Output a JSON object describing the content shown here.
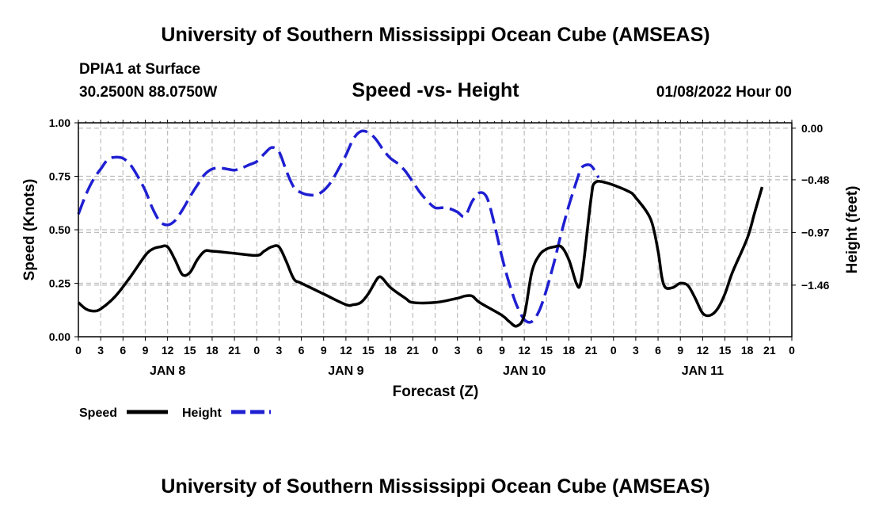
{
  "header": {
    "title": "University of Southern Mississippi Ocean Cube (AMSEAS)",
    "station": "DPIA1 at Surface",
    "coordinates": "30.2500N  88.0750W",
    "subtitle": "Speed -vs- Height",
    "datetime": "01/08/2022 Hour 00"
  },
  "footer": {
    "title": "University of Southern Mississippi Ocean Cube (AMSEAS)"
  },
  "chart_data": {
    "type": "line",
    "xlabel": "Forecast (Z)",
    "ylabel_left": "Speed (Knots)",
    "ylabel_right": "Height (feet)",
    "x_range_hours": [
      0,
      96
    ],
    "ylim_left": [
      0,
      1
    ],
    "ylim_right": [
      -1.94,
      0.05
    ],
    "left_ticks": [
      "0.00",
      "0.25",
      "0.50",
      "0.75",
      "1.00"
    ],
    "left_tick_values": [
      0,
      0.25,
      0.5,
      0.75,
      1.0
    ],
    "right_ticks": [
      "0.00",
      "−0.48",
      "−0.97",
      "−1.46"
    ],
    "right_tick_values": [
      0.0,
      -0.48,
      -0.97,
      -1.46
    ],
    "x_tick_labels": [
      "0",
      "3",
      "6",
      "9",
      "12",
      "15",
      "18",
      "21",
      "0",
      "3",
      "6",
      "9",
      "12",
      "15",
      "18",
      "21",
      "0",
      "3",
      "6",
      "9",
      "12",
      "15",
      "18",
      "21",
      "0",
      "3",
      "6",
      "9",
      "12",
      "15",
      "18",
      "21",
      "0"
    ],
    "day_labels": [
      {
        "label": "JAN 8",
        "hour": 12
      },
      {
        "label": "JAN 9",
        "hour": 36
      },
      {
        "label": "JAN 10",
        "hour": 60
      },
      {
        "label": "JAN 11",
        "hour": 84
      }
    ],
    "grid": true,
    "legend_position": "bottom-left",
    "series": [
      {
        "name": "Speed",
        "axis": "left",
        "color": "#000000",
        "dash": "solid",
        "points": [
          [
            0,
            0.16
          ],
          [
            1,
            0.13
          ],
          [
            2,
            0.12
          ],
          [
            3,
            0.13
          ],
          [
            5,
            0.19
          ],
          [
            7,
            0.28
          ],
          [
            9,
            0.38
          ],
          [
            10,
            0.41
          ],
          [
            11,
            0.42
          ],
          [
            12,
            0.42
          ],
          [
            13,
            0.36
          ],
          [
            14,
            0.29
          ],
          [
            15,
            0.3
          ],
          [
            16,
            0.36
          ],
          [
            17,
            0.4
          ],
          [
            18,
            0.4
          ],
          [
            21,
            0.39
          ],
          [
            24,
            0.38
          ],
          [
            25,
            0.4
          ],
          [
            26,
            0.42
          ],
          [
            27,
            0.42
          ],
          [
            28,
            0.35
          ],
          [
            29,
            0.27
          ],
          [
            30,
            0.25
          ],
          [
            33,
            0.2
          ],
          [
            36,
            0.15
          ],
          [
            37,
            0.15
          ],
          [
            38,
            0.16
          ],
          [
            39,
            0.2
          ],
          [
            40,
            0.26
          ],
          [
            40.5,
            0.28
          ],
          [
            41,
            0.27
          ],
          [
            42,
            0.23
          ],
          [
            44,
            0.18
          ],
          [
            45,
            0.16
          ],
          [
            48,
            0.16
          ],
          [
            51,
            0.18
          ],
          [
            52,
            0.19
          ],
          [
            53,
            0.19
          ],
          [
            54,
            0.16
          ],
          [
            57,
            0.1
          ],
          [
            58,
            0.07
          ],
          [
            59,
            0.05
          ],
          [
            60,
            0.1
          ],
          [
            61,
            0.3
          ],
          [
            62,
            0.38
          ],
          [
            63,
            0.41
          ],
          [
            64,
            0.42
          ],
          [
            65,
            0.42
          ],
          [
            66,
            0.36
          ],
          [
            67,
            0.25
          ],
          [
            67.5,
            0.24
          ],
          [
            68,
            0.35
          ],
          [
            69,
            0.65
          ],
          [
            69.5,
            0.72
          ],
          [
            71,
            0.72
          ],
          [
            74,
            0.68
          ],
          [
            75,
            0.65
          ],
          [
            77,
            0.55
          ],
          [
            78,
            0.4
          ],
          [
            78.5,
            0.28
          ],
          [
            79,
            0.23
          ],
          [
            80,
            0.23
          ],
          [
            81,
            0.25
          ],
          [
            82,
            0.24
          ],
          [
            83,
            0.18
          ],
          [
            84,
            0.11
          ],
          [
            85,
            0.1
          ],
          [
            86,
            0.13
          ],
          [
            87,
            0.2
          ],
          [
            88,
            0.3
          ],
          [
            90,
            0.46
          ],
          [
            91,
            0.58
          ],
          [
            92,
            0.7
          ]
        ]
      },
      {
        "name": "Height",
        "axis": "right",
        "color": "#1f1fd2",
        "dash": "long-dash",
        "points": [
          [
            0,
            -0.8
          ],
          [
            1,
            -0.62
          ],
          [
            2,
            -0.48
          ],
          [
            3,
            -0.38
          ],
          [
            4,
            -0.29
          ],
          [
            5,
            -0.27
          ],
          [
            6,
            -0.28
          ],
          [
            7,
            -0.34
          ],
          [
            8,
            -0.45
          ],
          [
            9,
            -0.58
          ],
          [
            10,
            -0.75
          ],
          [
            11,
            -0.87
          ],
          [
            12,
            -0.9
          ],
          [
            13,
            -0.86
          ],
          [
            14,
            -0.76
          ],
          [
            15,
            -0.64
          ],
          [
            16,
            -0.53
          ],
          [
            17,
            -0.43
          ],
          [
            18,
            -0.38
          ],
          [
            19,
            -0.37
          ],
          [
            20,
            -0.38
          ],
          [
            21,
            -0.39
          ],
          [
            22,
            -0.37
          ],
          [
            23,
            -0.34
          ],
          [
            24,
            -0.31
          ],
          [
            25,
            -0.24
          ],
          [
            26,
            -0.18
          ],
          [
            27,
            -0.22
          ],
          [
            28,
            -0.4
          ],
          [
            29,
            -0.55
          ],
          [
            30,
            -0.6
          ],
          [
            31,
            -0.62
          ],
          [
            32,
            -0.62
          ],
          [
            33,
            -0.58
          ],
          [
            34,
            -0.5
          ],
          [
            35,
            -0.38
          ],
          [
            36,
            -0.25
          ],
          [
            37,
            -0.1
          ],
          [
            38,
            -0.03
          ],
          [
            39,
            -0.04
          ],
          [
            40,
            -0.1
          ],
          [
            41,
            -0.2
          ],
          [
            42,
            -0.28
          ],
          [
            43,
            -0.33
          ],
          [
            44,
            -0.4
          ],
          [
            45,
            -0.5
          ],
          [
            46,
            -0.6
          ],
          [
            47,
            -0.68
          ],
          [
            48,
            -0.74
          ],
          [
            49,
            -0.74
          ],
          [
            50,
            -0.75
          ],
          [
            51,
            -0.78
          ],
          [
            52,
            -0.82
          ],
          [
            53,
            -0.68
          ],
          [
            54,
            -0.6
          ],
          [
            55,
            -0.65
          ],
          [
            56,
            -0.9
          ],
          [
            57,
            -1.2
          ],
          [
            58,
            -1.45
          ],
          [
            59,
            -1.65
          ],
          [
            60,
            -1.78
          ],
          [
            61,
            -1.8
          ],
          [
            62,
            -1.7
          ],
          [
            63,
            -1.5
          ],
          [
            64,
            -1.25
          ],
          [
            65,
            -0.97
          ],
          [
            66,
            -0.72
          ],
          [
            67,
            -0.5
          ],
          [
            67.5,
            -0.4
          ],
          [
            68,
            -0.35
          ],
          [
            69,
            -0.35
          ],
          [
            70,
            -0.46
          ]
        ]
      }
    ]
  },
  "legend": {
    "speed_label": "Speed",
    "height_label": "Height"
  }
}
